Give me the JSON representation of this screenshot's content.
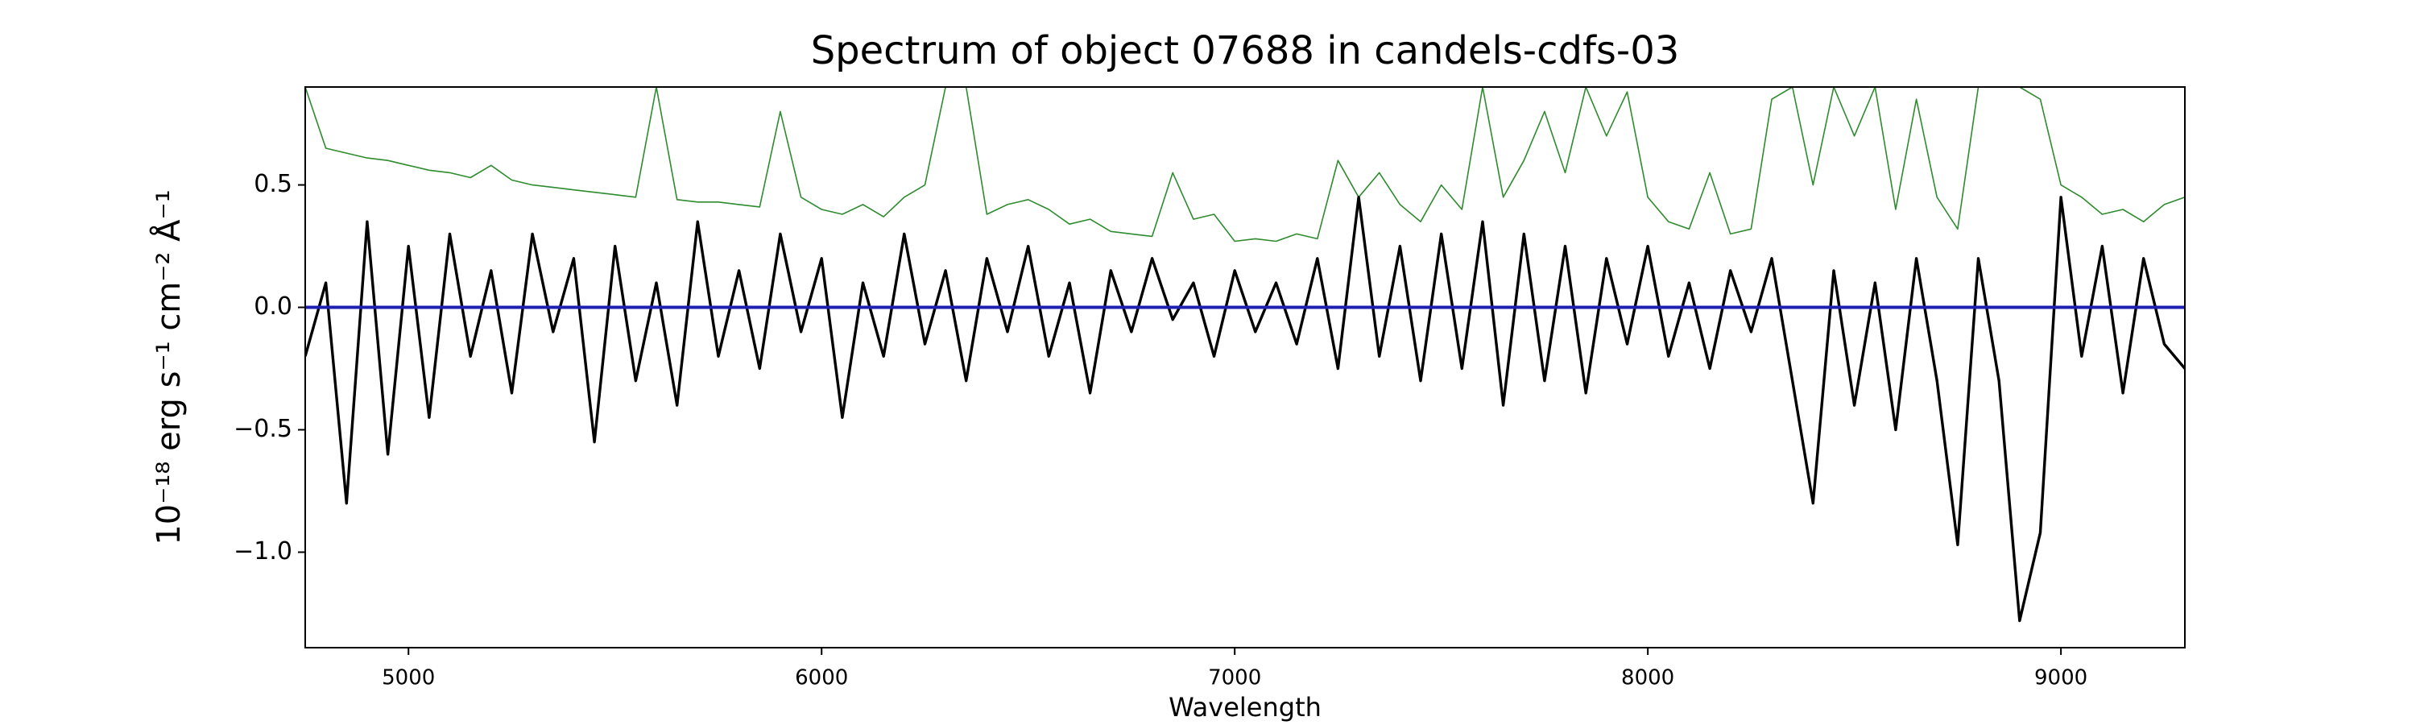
{
  "chart_data": {
    "type": "line",
    "title": "Spectrum of object 07688 in candels-cdfs-03",
    "x_label": "Wavelength",
    "y_label": "10⁻¹⁸ erg s⁻¹ cm⁻² Å⁻¹",
    "x": [
      4750,
      4800,
      4850,
      4900,
      4950,
      5000,
      5050,
      5100,
      5150,
      5200,
      5250,
      5300,
      5350,
      5400,
      5450,
      5500,
      5550,
      5600,
      5650,
      5700,
      5750,
      5800,
      5850,
      5900,
      5950,
      6000,
      6050,
      6100,
      6150,
      6200,
      6250,
      6300,
      6350,
      6400,
      6450,
      6500,
      6550,
      6600,
      6650,
      6700,
      6750,
      6800,
      6850,
      6900,
      6950,
      7000,
      7050,
      7100,
      7150,
      7200,
      7250,
      7300,
      7350,
      7400,
      7450,
      7500,
      7550,
      7600,
      7650,
      7700,
      7750,
      7800,
      7850,
      7900,
      7950,
      8000,
      8050,
      8100,
      8150,
      8200,
      8250,
      8300,
      8350,
      8400,
      8450,
      8500,
      8550,
      8600,
      8650,
      8700,
      8750,
      8800,
      8850,
      8900,
      8950,
      9000,
      9050,
      9100,
      9150,
      9200,
      9250,
      9300
    ],
    "series": [
      {
        "color": "#2e8b2e",
        "values": [
          0.9,
          0.65,
          0.63,
          0.61,
          0.6,
          0.58,
          0.56,
          0.55,
          0.53,
          0.58,
          0.52,
          0.5,
          0.49,
          0.48,
          0.47,
          0.46,
          0.45,
          0.9,
          0.44,
          0.43,
          0.43,
          0.42,
          0.41,
          0.8,
          0.45,
          0.4,
          0.38,
          0.42,
          0.37,
          0.45,
          0.5,
          0.9,
          0.9,
          0.38,
          0.42,
          0.44,
          0.4,
          0.34,
          0.36,
          0.31,
          0.3,
          0.29,
          0.55,
          0.36,
          0.38,
          0.27,
          0.28,
          0.27,
          0.3,
          0.28,
          0.6,
          0.45,
          0.55,
          0.42,
          0.35,
          0.5,
          0.4,
          0.9,
          0.45,
          0.6,
          0.8,
          0.55,
          0.9,
          0.7,
          0.88,
          0.45,
          0.35,
          0.32,
          0.55,
          0.3,
          0.32,
          0.85,
          0.9,
          0.5,
          0.9,
          0.7,
          0.9,
          0.4,
          0.85,
          0.45,
          0.32,
          0.9,
          0.9,
          0.9,
          0.85,
          0.5,
          0.45,
          0.38,
          0.4,
          0.35,
          0.42,
          0.45
        ]
      },
      {
        "color": "#000000",
        "values": [
          -0.2,
          0.1,
          -0.8,
          0.35,
          -0.6,
          0.25,
          -0.45,
          0.3,
          -0.2,
          0.15,
          -0.35,
          0.3,
          -0.1,
          0.2,
          -0.55,
          0.25,
          -0.3,
          0.1,
          -0.4,
          0.35,
          -0.2,
          0.15,
          -0.25,
          0.3,
          -0.1,
          0.2,
          -0.45,
          0.1,
          -0.2,
          0.3,
          -0.15,
          0.15,
          -0.3,
          0.2,
          -0.1,
          0.25,
          -0.2,
          0.1,
          -0.35,
          0.15,
          -0.1,
          0.2,
          -0.05,
          0.1,
          -0.2,
          0.15,
          -0.1,
          0.1,
          -0.15,
          0.2,
          -0.25,
          0.45,
          -0.2,
          0.25,
          -0.3,
          0.3,
          -0.25,
          0.35,
          -0.4,
          0.3,
          -0.3,
          0.25,
          -0.35,
          0.2,
          -0.15,
          0.25,
          -0.2,
          0.1,
          -0.25,
          0.15,
          -0.1,
          0.2,
          -0.3,
          -0.8,
          0.15,
          -0.4,
          0.1,
          -0.5,
          0.2,
          -0.3,
          -0.97,
          0.2,
          -0.3,
          -1.28,
          -0.92,
          0.45,
          -0.2,
          0.25,
          -0.35,
          0.2,
          -0.15,
          -0.25
        ]
      },
      {
        "color": "#1f1fb4",
        "values": [
          0,
          0,
          0,
          0,
          0,
          0,
          0,
          0,
          0,
          0,
          0,
          0,
          0,
          0,
          0,
          0,
          0,
          0,
          0,
          0,
          0,
          0,
          0,
          0,
          0,
          0,
          0,
          0,
          0,
          0,
          0,
          0,
          0,
          0,
          0,
          0,
          0,
          0,
          0,
          0,
          0,
          0,
          0,
          0,
          0,
          0,
          0,
          0,
          0,
          0,
          0,
          0,
          0,
          0,
          0,
          0,
          0,
          0,
          0,
          0,
          0,
          0,
          0,
          0,
          0,
          0,
          0,
          0,
          0,
          0,
          0,
          0,
          0,
          0,
          0,
          0,
          0,
          0,
          0,
          0,
          0,
          0,
          0,
          0,
          0,
          0,
          0,
          0,
          0,
          0,
          0,
          0
        ]
      }
    ],
    "xlim": [
      4750,
      9300
    ],
    "ylim": [
      -1.39,
      0.9
    ],
    "xticks": [
      5000,
      6000,
      7000,
      8000,
      9000
    ],
    "yticks": [
      {
        "value": -1.0,
        "label": "−1.0"
      },
      {
        "value": -0.5,
        "label": "−0.5"
      },
      {
        "value": 0.0,
        "label": "0.0"
      },
      0.5
    ]
  }
}
